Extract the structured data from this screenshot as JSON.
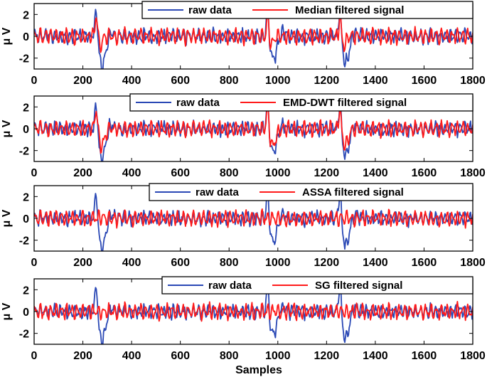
{
  "figure": {
    "xlabel": "Samples"
  },
  "chart_data": [
    {
      "type": "line",
      "xlabel": "",
      "ylabel": "μ V",
      "xlim": [
        0,
        1800
      ],
      "ylim": [
        -3,
        3
      ],
      "xticks": [
        0,
        200,
        400,
        600,
        800,
        1000,
        1200,
        1400,
        1600,
        1800
      ],
      "yticks": [
        -2,
        0,
        2
      ],
      "legend_position": "top-right",
      "spikes": [
        255,
        958,
        1255
      ],
      "series": [
        {
          "name": "raw data",
          "color": "#2a48b5",
          "envelope": [
            -2.7,
            3.0
          ]
        },
        {
          "name": "Median filtered signal",
          "color": "#ff1a1a",
          "envelope": [
            -1.2,
            2.6
          ]
        }
      ]
    },
    {
      "type": "line",
      "xlabel": "",
      "ylabel": "μ V",
      "xlim": [
        0,
        1800
      ],
      "ylim": [
        -3,
        3
      ],
      "xticks": [
        0,
        200,
        400,
        600,
        800,
        1000,
        1200,
        1400,
        1600,
        1800
      ],
      "yticks": [
        -2,
        0,
        2
      ],
      "legend_position": "top-right",
      "spikes": [
        255,
        958,
        1255
      ],
      "series": [
        {
          "name": "raw data",
          "color": "#2a48b5",
          "envelope": [
            -2.7,
            3.0
          ]
        },
        {
          "name": "EMD-DWT filtered signal",
          "color": "#ff1a1a",
          "envelope": [
            -2.0,
            2.4
          ]
        }
      ]
    },
    {
      "type": "line",
      "xlabel": "",
      "ylabel": "μ V",
      "xlim": [
        0,
        1800
      ],
      "ylim": [
        -3,
        3
      ],
      "xticks": [
        0,
        200,
        400,
        600,
        800,
        1000,
        1200,
        1400,
        1600,
        1800
      ],
      "yticks": [
        -2,
        0,
        2
      ],
      "legend_position": "top-right",
      "spikes": [
        255,
        958,
        1255
      ],
      "series": [
        {
          "name": "raw data",
          "color": "#2a48b5",
          "envelope": [
            -2.7,
            3.0
          ]
        },
        {
          "name": "ASSA filtered signal",
          "color": "#ff1a1a",
          "envelope": [
            -0.8,
            0.8
          ]
        }
      ]
    },
    {
      "type": "line",
      "xlabel": "Samples",
      "ylabel": "μ V",
      "xlim": [
        0,
        1800
      ],
      "ylim": [
        -3,
        3
      ],
      "xticks": [
        0,
        200,
        400,
        600,
        800,
        1000,
        1200,
        1400,
        1600,
        1800
      ],
      "yticks": [
        -2,
        0,
        2
      ],
      "legend_position": "top-right",
      "spikes": [
        255,
        958,
        1255
      ],
      "series": [
        {
          "name": "raw data",
          "color": "#2a48b5",
          "envelope": [
            -2.7,
            3.0
          ]
        },
        {
          "name": "SG filtered signal",
          "color": "#ff1a1a",
          "envelope": [
            -0.8,
            0.8
          ]
        }
      ]
    }
  ]
}
